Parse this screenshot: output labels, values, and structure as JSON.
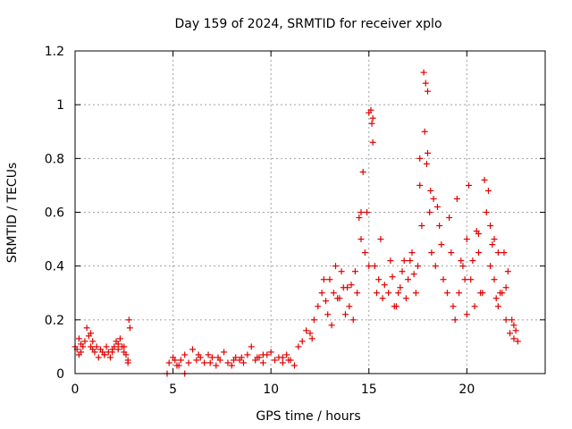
{
  "chart_data": {
    "type": "scatter",
    "title": "Day 159 of 2024, SRMTID for receiver xplo",
    "xlabel": "GPS time / hours",
    "ylabel": "SRMTID / TECUs",
    "xlim": [
      0,
      24
    ],
    "ylim": [
      0,
      1.2
    ],
    "xticks": [
      0,
      5,
      10,
      15,
      20
    ],
    "xtick_labels": [
      "0",
      "5",
      "10",
      "15",
      "20"
    ],
    "yticks": [
      0,
      0.2,
      0.4,
      0.6,
      0.8,
      1.0,
      1.2
    ],
    "ytick_labels": [
      "0",
      "0.2",
      "0.4",
      "0.6",
      "0.8",
      "1",
      "1.2"
    ],
    "grid": true,
    "marker": "plus",
    "color": "#e00000",
    "series": [
      {
        "name": "SRMTID",
        "x": [
          0.0,
          0.1,
          0.2,
          0.3,
          0.4,
          0.5,
          0.6,
          0.7,
          0.8,
          0.9,
          1.0,
          1.1,
          1.2,
          1.3,
          1.4,
          1.5,
          1.6,
          1.7,
          1.8,
          1.9,
          2.0,
          2.1,
          2.2,
          2.3,
          2.4,
          2.5,
          2.6,
          2.7,
          2.75,
          2.8,
          4.7,
          5.6,
          4.8,
          5.0,
          5.2,
          5.4,
          5.6,
          5.8,
          6.0,
          6.2,
          6.4,
          6.6,
          6.8,
          7.0,
          7.2,
          7.4,
          7.6,
          7.8,
          8.0,
          8.2,
          8.4,
          8.6,
          8.8,
          9.0,
          9.2,
          9.4,
          9.6,
          9.8,
          10.0,
          10.2,
          10.4,
          10.6,
          10.8,
          11.0,
          11.2,
          11.4,
          11.6,
          11.8,
          12.0,
          12.2,
          12.4,
          12.6,
          12.8,
          13.0,
          13.2,
          13.4,
          13.6,
          13.8,
          14.0,
          14.2,
          14.4,
          14.6,
          14.8,
          15.0,
          15.1,
          15.2,
          15.3,
          15.4,
          15.6,
          15.8,
          16.0,
          16.2,
          16.4,
          16.6,
          16.8,
          17.0,
          17.2,
          17.4,
          17.6,
          17.8,
          17.9,
          18.0,
          18.1,
          18.2,
          18.4,
          18.6,
          18.8,
          19.0,
          19.2,
          19.4,
          19.6,
          19.8,
          20.0,
          20.2,
          20.4,
          20.6,
          20.8,
          21.0,
          21.2,
          21.4,
          21.6,
          21.8,
          22.0,
          22.2,
          22.4,
          22.6,
          0.3,
          0.8,
          1.5,
          2.2,
          2.7,
          5.1,
          6.3,
          7.3,
          8.5,
          9.6,
          10.6,
          12.7,
          13.5,
          14.1,
          14.5,
          14.7,
          15.15,
          15.2,
          16.5,
          17.1,
          17.6,
          17.85,
          17.95,
          18.15,
          18.3,
          19.1,
          19.7,
          20.1,
          20.5,
          20.9,
          21.2,
          21.4,
          21.7,
          22.3,
          0.2,
          0.9,
          1.9,
          2.5,
          5.3,
          6.9,
          8.1,
          9.3,
          10.9,
          12.1,
          12.9,
          13.3,
          13.9,
          14.3,
          14.9,
          15.5,
          16.1,
          16.9,
          17.3,
          17.7,
          18.5,
          19.3,
          19.9,
          20.3,
          20.7,
          21.1,
          21.5,
          21.9,
          22.1,
          22.5,
          13.1,
          13.7,
          14.6,
          15.0,
          15.7,
          16.3,
          16.7,
          17.5,
          18.0,
          18.7,
          19.5,
          20.0,
          20.6,
          21.3,
          21.6,
          22.0,
          22.4
        ],
        "y": [
          0.1,
          0.09,
          0.13,
          0.08,
          0.1,
          0.12,
          0.17,
          0.14,
          0.1,
          0.09,
          0.08,
          0.1,
          0.06,
          0.09,
          0.08,
          0.07,
          0.1,
          0.08,
          0.06,
          0.08,
          0.1,
          0.12,
          0.09,
          0.13,
          0.1,
          0.08,
          0.07,
          0.04,
          0.2,
          0.17,
          0.0,
          0.0,
          0.04,
          0.06,
          0.03,
          0.05,
          0.07,
          0.04,
          0.09,
          0.05,
          0.06,
          0.04,
          0.07,
          0.06,
          0.03,
          0.05,
          0.08,
          0.04,
          0.03,
          0.06,
          0.05,
          0.04,
          0.07,
          0.1,
          0.05,
          0.06,
          0.04,
          0.07,
          0.08,
          0.05,
          0.06,
          0.04,
          0.07,
          0.05,
          0.03,
          0.1,
          0.12,
          0.16,
          0.15,
          0.2,
          0.25,
          0.3,
          0.27,
          0.35,
          0.3,
          0.28,
          0.38,
          0.22,
          0.25,
          0.2,
          0.3,
          0.5,
          0.45,
          0.97,
          0.98,
          0.86,
          0.4,
          0.3,
          0.5,
          0.33,
          0.3,
          0.36,
          0.25,
          0.32,
          0.42,
          0.35,
          0.45,
          0.3,
          0.7,
          1.12,
          1.08,
          1.05,
          0.6,
          0.45,
          0.4,
          0.55,
          0.35,
          0.3,
          0.45,
          0.2,
          0.3,
          0.4,
          0.5,
          0.35,
          0.25,
          0.45,
          0.3,
          0.6,
          0.4,
          0.35,
          0.45,
          0.3,
          0.2,
          0.15,
          0.13,
          0.12,
          0.11,
          0.15,
          0.07,
          0.11,
          0.05,
          0.05,
          0.07,
          0.06,
          0.06,
          0.07,
          0.06,
          0.35,
          0.28,
          0.33,
          0.58,
          0.75,
          0.93,
          0.95,
          0.3,
          0.42,
          0.8,
          0.9,
          0.78,
          0.68,
          0.65,
          0.58,
          0.42,
          0.7,
          0.53,
          0.72,
          0.55,
          0.5,
          0.3,
          0.2,
          0.07,
          0.12,
          0.09,
          0.1,
          0.03,
          0.04,
          0.05,
          0.06,
          0.05,
          0.13,
          0.22,
          0.4,
          0.32,
          0.38,
          0.6,
          0.35,
          0.42,
          0.28,
          0.37,
          0.55,
          0.62,
          0.25,
          0.35,
          0.42,
          0.3,
          0.68,
          0.28,
          0.45,
          0.38,
          0.16,
          0.18,
          0.32,
          0.6,
          0.4,
          0.28,
          0.25,
          0.38,
          0.4,
          0.82,
          0.48,
          0.65,
          0.22,
          0.52,
          0.48,
          0.25,
          0.32,
          0.18
        ]
      }
    ]
  }
}
